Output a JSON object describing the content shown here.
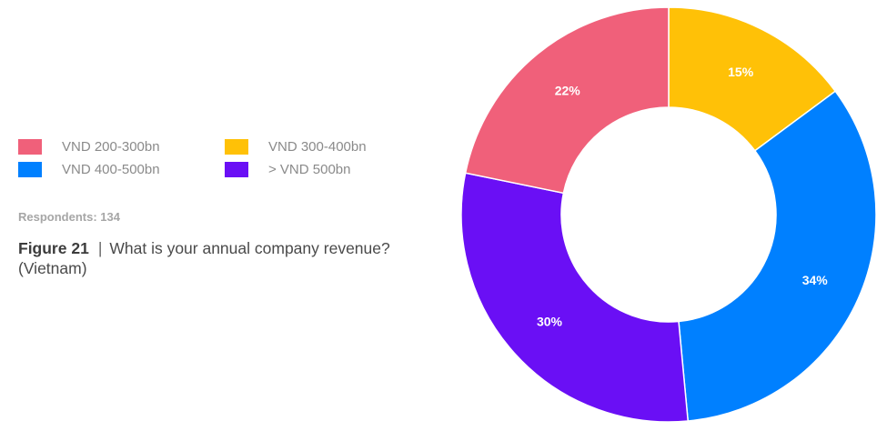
{
  "legend": {
    "items": [
      {
        "label": "VND 200-300bn",
        "color": "#f0607a"
      },
      {
        "label": "VND 300-400bn",
        "color": "#ffc107"
      },
      {
        "label": "VND 400-500bn",
        "color": "#0080ff"
      },
      {
        "label": "> VND 500bn",
        "color": "#6a0ff5"
      }
    ]
  },
  "respondents": "Respondents: 134",
  "figure": {
    "number": "Figure 21",
    "separator": "|",
    "caption": "What is your annual company revenue? (Vietnam)"
  },
  "chart_data": {
    "type": "pie",
    "variant": "donut",
    "categories": [
      "VND 300-400bn",
      "VND 400-500bn",
      "> VND 500bn",
      "VND 200-300bn"
    ],
    "values": [
      15,
      34,
      30,
      22
    ],
    "value_labels": [
      "15%",
      "34%",
      "30%",
      "22%"
    ],
    "colors": [
      "#ffc107",
      "#0080ff",
      "#6a0ff5",
      "#f0607a"
    ],
    "start_angle": "12 o'clock",
    "direction": "clockwise",
    "legend_position": "left"
  }
}
